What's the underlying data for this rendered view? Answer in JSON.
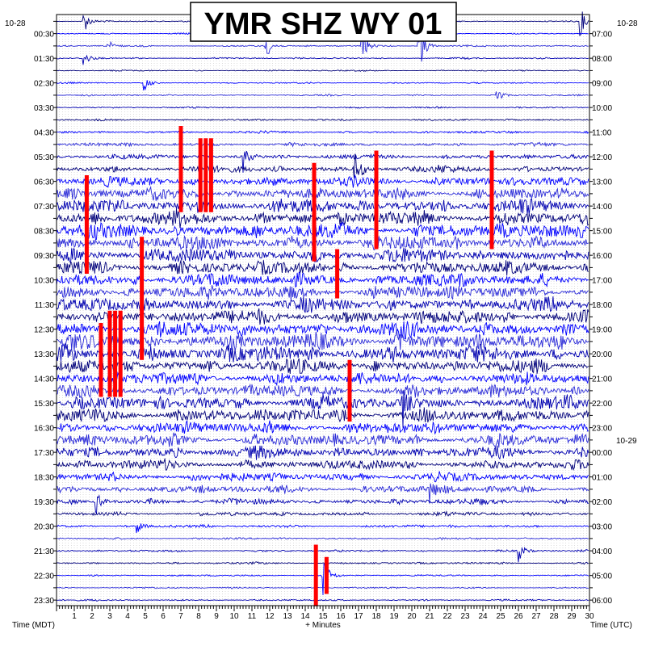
{
  "chart_data": {
    "type": "line",
    "title": "YMR SHZ WY 01",
    "xlabel": "+ Minutes",
    "left_axis_label": "Time (MDT)",
    "right_axis_label": "Time (UTC)",
    "xlim": [
      0,
      30
    ],
    "x_ticks": [
      "1",
      "2",
      "3",
      "4",
      "5",
      "6",
      "7",
      "8",
      "9",
      "10",
      "11",
      "12",
      "13",
      "14",
      "15",
      "16",
      "17",
      "18",
      "19",
      "20",
      "21",
      "22",
      "23",
      "24",
      "25",
      "26",
      "27",
      "28",
      "29",
      "30"
    ],
    "left_date": "10-28",
    "right_date": "10-28",
    "right_date_change": {
      "row": 34,
      "label": "10-29"
    },
    "row_count": 48,
    "left_tick_labels": [
      {
        "row": 1,
        "label": "00:30"
      },
      {
        "row": 3,
        "label": "01:30"
      },
      {
        "row": 5,
        "label": "02:30"
      },
      {
        "row": 7,
        "label": "03:30"
      },
      {
        "row": 9,
        "label": "04:30"
      },
      {
        "row": 11,
        "label": "05:30"
      },
      {
        "row": 13,
        "label": "06:30"
      },
      {
        "row": 15,
        "label": "07:30"
      },
      {
        "row": 17,
        "label": "08:30"
      },
      {
        "row": 19,
        "label": "09:30"
      },
      {
        "row": 21,
        "label": "10:30"
      },
      {
        "row": 23,
        "label": "11:30"
      },
      {
        "row": 25,
        "label": "12:30"
      },
      {
        "row": 27,
        "label": "13:30"
      },
      {
        "row": 29,
        "label": "14:30"
      },
      {
        "row": 31,
        "label": "15:30"
      },
      {
        "row": 33,
        "label": "16:30"
      },
      {
        "row": 35,
        "label": "17:30"
      },
      {
        "row": 37,
        "label": "18:30"
      },
      {
        "row": 39,
        "label": "19:30"
      },
      {
        "row": 41,
        "label": "20:30"
      },
      {
        "row": 43,
        "label": "21:30"
      },
      {
        "row": 45,
        "label": "22:30"
      },
      {
        "row": 47,
        "label": "23:30"
      }
    ],
    "right_tick_labels": [
      {
        "row": 1,
        "label": "07:00"
      },
      {
        "row": 3,
        "label": "08:00"
      },
      {
        "row": 5,
        "label": "09:00"
      },
      {
        "row": 7,
        "label": "10:00"
      },
      {
        "row": 9,
        "label": "11:00"
      },
      {
        "row": 11,
        "label": "12:00"
      },
      {
        "row": 13,
        "label": "13:00"
      },
      {
        "row": 15,
        "label": "14:00"
      },
      {
        "row": 17,
        "label": "15:00"
      },
      {
        "row": 19,
        "label": "16:00"
      },
      {
        "row": 21,
        "label": "17:00"
      },
      {
        "row": 23,
        "label": "18:00"
      },
      {
        "row": 25,
        "label": "19:00"
      },
      {
        "row": 27,
        "label": "20:00"
      },
      {
        "row": 29,
        "label": "21:00"
      },
      {
        "row": 31,
        "label": "22:00"
      },
      {
        "row": 33,
        "label": "23:00"
      },
      {
        "row": 35,
        "label": "00:00"
      },
      {
        "row": 37,
        "label": "01:00"
      },
      {
        "row": 39,
        "label": "02:00"
      },
      {
        "row": 41,
        "label": "03:00"
      },
      {
        "row": 43,
        "label": "04:00"
      },
      {
        "row": 45,
        "label": "05:00"
      },
      {
        "row": 47,
        "label": "06:00"
      }
    ],
    "row_noise_level": [
      0.08,
      0.07,
      0.08,
      0.08,
      0.07,
      0.07,
      0.08,
      0.08,
      0.09,
      0.12,
      0.18,
      0.25,
      0.35,
      0.5,
      0.6,
      0.7,
      0.75,
      0.8,
      0.75,
      0.75,
      0.7,
      0.7,
      0.7,
      0.7,
      0.75,
      0.8,
      0.85,
      0.85,
      0.7,
      0.65,
      0.65,
      0.7,
      0.7,
      0.65,
      0.65,
      0.6,
      0.5,
      0.45,
      0.4,
      0.3,
      0.2,
      0.15,
      0.1,
      0.1,
      0.1,
      0.08,
      0.08,
      0.08
    ],
    "series_colors": [
      "#00007a",
      "#0000ff",
      "#2b2bd8",
      "#0000b0"
    ],
    "clip_color": "#ff0000",
    "events": [
      {
        "row": 0,
        "x": 1.5,
        "amp": 1.6
      },
      {
        "row": 0,
        "x": 29.5,
        "amp": 1.5
      },
      {
        "row": 1,
        "x": 20.6,
        "amp": 1.2
      },
      {
        "row": 2,
        "x": 20.4,
        "amp": 3.5
      },
      {
        "row": 2,
        "x": 17.2,
        "amp": 2.0
      },
      {
        "row": 2,
        "x": 11.8,
        "amp": 1.4
      },
      {
        "row": 2,
        "x": 2.8,
        "amp": 1.0
      },
      {
        "row": 3,
        "x": 1.5,
        "amp": 1.0
      },
      {
        "row": 5,
        "x": 4.9,
        "amp": 1.2
      },
      {
        "row": 6,
        "x": 24.8,
        "amp": 1.0
      },
      {
        "row": 11,
        "x": 10.5,
        "amp": 1.6
      },
      {
        "row": 12,
        "x": 16.8,
        "amp": 1.8
      },
      {
        "row": 26,
        "x": 19.2,
        "amp": 1.5
      },
      {
        "row": 31,
        "x": 19.5,
        "amp": 2.0
      },
      {
        "row": 38,
        "x": 21.0,
        "amp": 1.5
      },
      {
        "row": 39,
        "x": 2.2,
        "amp": 1.5
      },
      {
        "row": 41,
        "x": 4.5,
        "amp": 1.0
      },
      {
        "row": 43,
        "x": 26.0,
        "amp": 1.2
      },
      {
        "row": 45,
        "x": 15.0,
        "amp": 2.5
      }
    ],
    "clipped_events": [
      {
        "x": 1.7,
        "row_start": 13,
        "row_end": 20
      },
      {
        "x": 7.0,
        "row_start": 9,
        "row_end": 15
      },
      {
        "x": 8.1,
        "row_start": 10,
        "row_end": 15
      },
      {
        "x": 8.4,
        "row_start": 10,
        "row_end": 15
      },
      {
        "x": 8.7,
        "row_start": 10,
        "row_end": 15
      },
      {
        "x": 14.5,
        "row_start": 12,
        "row_end": 19
      },
      {
        "x": 18.0,
        "row_start": 11,
        "row_end": 18
      },
      {
        "x": 24.5,
        "row_start": 11,
        "row_end": 18
      },
      {
        "x": 4.8,
        "row_start": 18,
        "row_end": 27
      },
      {
        "x": 2.5,
        "row_start": 25,
        "row_end": 30
      },
      {
        "x": 3.0,
        "row_start": 24,
        "row_end": 30
      },
      {
        "x": 3.3,
        "row_start": 24,
        "row_end": 30
      },
      {
        "x": 3.6,
        "row_start": 24,
        "row_end": 30
      },
      {
        "x": 15.8,
        "row_start": 19,
        "row_end": 22
      },
      {
        "x": 16.5,
        "row_start": 28,
        "row_end": 32
      },
      {
        "x": 14.6,
        "row_start": 43,
        "row_end": 47
      },
      {
        "x": 15.2,
        "row_start": 44,
        "row_end": 46
      }
    ]
  }
}
